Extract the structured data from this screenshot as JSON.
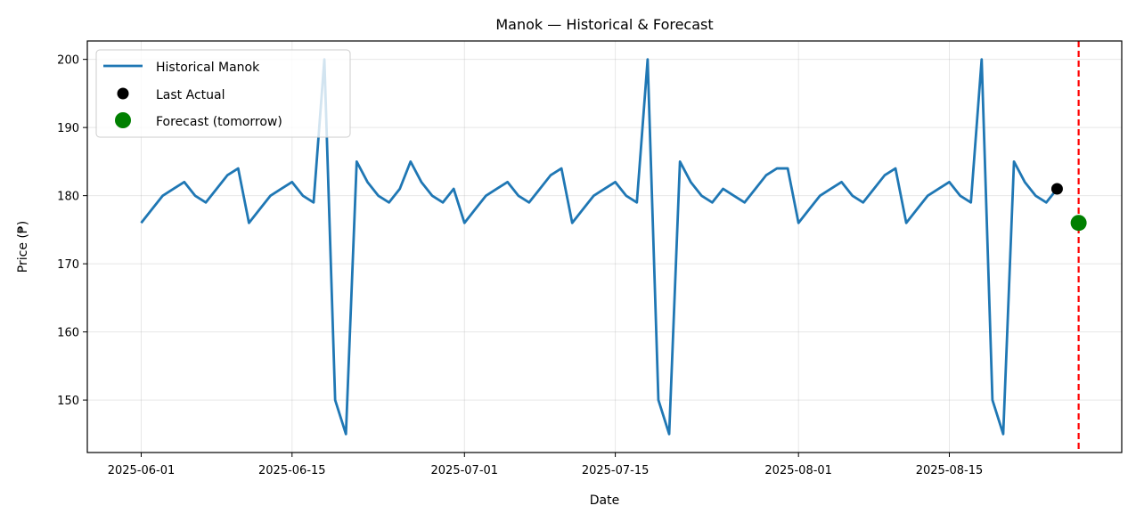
{
  "chart_data": {
    "type": "line",
    "title": "Manok — Historical & Forecast",
    "xlabel": "Date",
    "ylabel": "Price (₱)",
    "x_range": [
      "2025-05-27",
      "2025-08-31"
    ],
    "ylim": [
      142.3,
      202.7
    ],
    "grid": true,
    "legend_position": "top-left",
    "x_ticks": [
      "2025-06-01",
      "2025-06-15",
      "2025-07-01",
      "2025-07-15",
      "2025-08-01",
      "2025-08-15"
    ],
    "y_ticks": [
      150,
      160,
      170,
      180,
      190,
      200
    ],
    "series": [
      {
        "name": "Historical Manok",
        "kind": "line",
        "color": "#1f77b4",
        "points": [
          [
            "2025-06-01",
            176
          ],
          [
            "2025-06-02",
            178
          ],
          [
            "2025-06-03",
            180
          ],
          [
            "2025-06-04",
            181
          ],
          [
            "2025-06-05",
            182
          ],
          [
            "2025-06-06",
            180
          ],
          [
            "2025-06-07",
            179
          ],
          [
            "2025-06-08",
            181
          ],
          [
            "2025-06-09",
            183
          ],
          [
            "2025-06-10",
            184
          ],
          [
            "2025-06-11",
            176
          ],
          [
            "2025-06-12",
            178
          ],
          [
            "2025-06-13",
            180
          ],
          [
            "2025-06-14",
            181
          ],
          [
            "2025-06-15",
            182
          ],
          [
            "2025-06-16",
            180
          ],
          [
            "2025-06-17",
            179
          ],
          [
            "2025-06-18",
            200
          ],
          [
            "2025-06-19",
            150
          ],
          [
            "2025-06-20",
            145
          ],
          [
            "2025-06-21",
            185
          ],
          [
            "2025-06-22",
            182
          ],
          [
            "2025-06-23",
            180
          ],
          [
            "2025-06-24",
            179
          ],
          [
            "2025-06-25",
            181
          ],
          [
            "2025-06-26",
            185
          ],
          [
            "2025-06-27",
            182
          ],
          [
            "2025-06-28",
            180
          ],
          [
            "2025-06-29",
            179
          ],
          [
            "2025-06-30",
            181
          ],
          [
            "2025-07-01",
            176
          ],
          [
            "2025-07-02",
            178
          ],
          [
            "2025-07-03",
            180
          ],
          [
            "2025-07-04",
            181
          ],
          [
            "2025-07-05",
            182
          ],
          [
            "2025-07-06",
            180
          ],
          [
            "2025-07-07",
            179
          ],
          [
            "2025-07-08",
            181
          ],
          [
            "2025-07-09",
            183
          ],
          [
            "2025-07-10",
            184
          ],
          [
            "2025-07-11",
            176
          ],
          [
            "2025-07-12",
            178
          ],
          [
            "2025-07-13",
            180
          ],
          [
            "2025-07-14",
            181
          ],
          [
            "2025-07-15",
            182
          ],
          [
            "2025-07-16",
            180
          ],
          [
            "2025-07-17",
            179
          ],
          [
            "2025-07-18",
            200
          ],
          [
            "2025-07-19",
            150
          ],
          [
            "2025-07-20",
            145
          ],
          [
            "2025-07-21",
            185
          ],
          [
            "2025-07-22",
            182
          ],
          [
            "2025-07-23",
            180
          ],
          [
            "2025-07-24",
            179
          ],
          [
            "2025-07-25",
            181
          ],
          [
            "2025-07-26",
            180
          ],
          [
            "2025-07-27",
            179
          ],
          [
            "2025-07-28",
            181
          ],
          [
            "2025-07-29",
            183
          ],
          [
            "2025-07-30",
            184
          ],
          [
            "2025-07-31",
            184
          ],
          [
            "2025-08-01",
            176
          ],
          [
            "2025-08-02",
            178
          ],
          [
            "2025-08-03",
            180
          ],
          [
            "2025-08-04",
            181
          ],
          [
            "2025-08-05",
            182
          ],
          [
            "2025-08-06",
            180
          ],
          [
            "2025-08-07",
            179
          ],
          [
            "2025-08-08",
            181
          ],
          [
            "2025-08-09",
            183
          ],
          [
            "2025-08-10",
            184
          ],
          [
            "2025-08-11",
            176
          ],
          [
            "2025-08-12",
            178
          ],
          [
            "2025-08-13",
            180
          ],
          [
            "2025-08-14",
            181
          ],
          [
            "2025-08-15",
            182
          ],
          [
            "2025-08-16",
            180
          ],
          [
            "2025-08-17",
            179
          ],
          [
            "2025-08-18",
            200
          ],
          [
            "2025-08-19",
            150
          ],
          [
            "2025-08-20",
            145
          ],
          [
            "2025-08-21",
            185
          ],
          [
            "2025-08-22",
            182
          ],
          [
            "2025-08-23",
            180
          ],
          [
            "2025-08-24",
            179
          ],
          [
            "2025-08-25",
            181
          ]
        ]
      },
      {
        "name": "Last Actual",
        "kind": "scatter",
        "color": "#000000",
        "points": [
          [
            "2025-08-25",
            181
          ]
        ]
      },
      {
        "name": "Forecast (tomorrow)",
        "kind": "scatter",
        "color": "#008000",
        "points": [
          [
            "2025-08-27",
            176
          ]
        ]
      }
    ],
    "vline": {
      "x": "2025-08-27",
      "color": "#ff0000",
      "style": "dashed"
    }
  }
}
